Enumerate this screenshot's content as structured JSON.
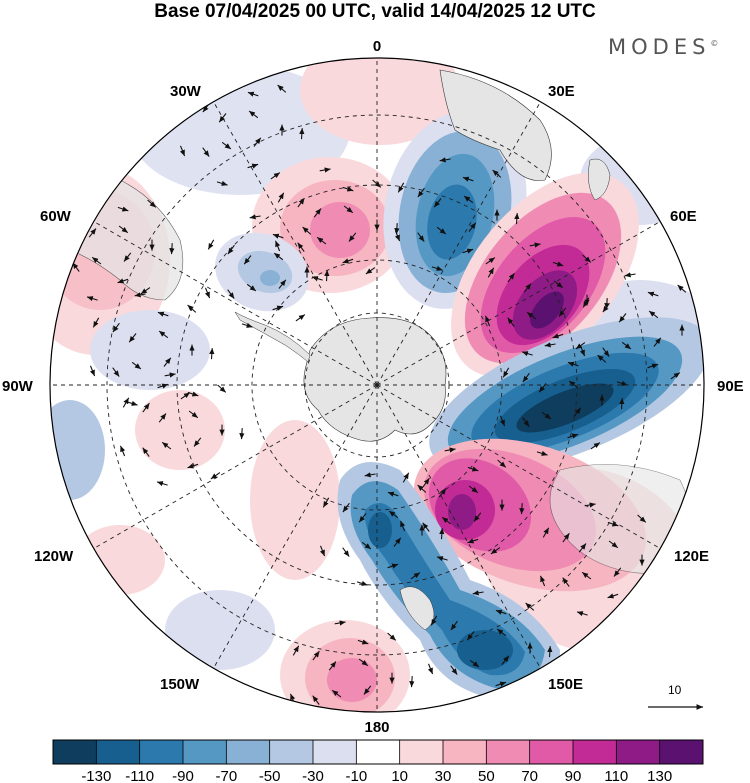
{
  "title": "Base 07/04/2025 00 UTC, valid 14/04/2025 12 UTC",
  "brand": "MODES",
  "brand_mark": "©",
  "longitude_labels": [
    "0",
    "30E",
    "60E",
    "90E",
    "120E",
    "150E",
    "180",
    "150W",
    "120W",
    "90W",
    "60W",
    "30W"
  ],
  "reference_vector_label": "10",
  "colorbar": {
    "tick_labels": [
      "-130",
      "-110",
      "-90",
      "-70",
      "-50",
      "-30",
      "-10",
      "10",
      "30",
      "50",
      "70",
      "90",
      "110",
      "130"
    ],
    "colors": [
      "#0e3d5e",
      "#165f8f",
      "#2b79ad",
      "#5598c4",
      "#88b1d5",
      "#b4c8e3",
      "#dcdff0",
      "#ffffff",
      "#f9d9dc",
      "#f6b5c1",
      "#f08cb3",
      "#e05aa8",
      "#c22a95",
      "#8e1b86",
      "#5b1170"
    ]
  },
  "colors": {
    "land": "#e5e5e5",
    "arrow": "#111111",
    "grid": "#222222"
  }
}
